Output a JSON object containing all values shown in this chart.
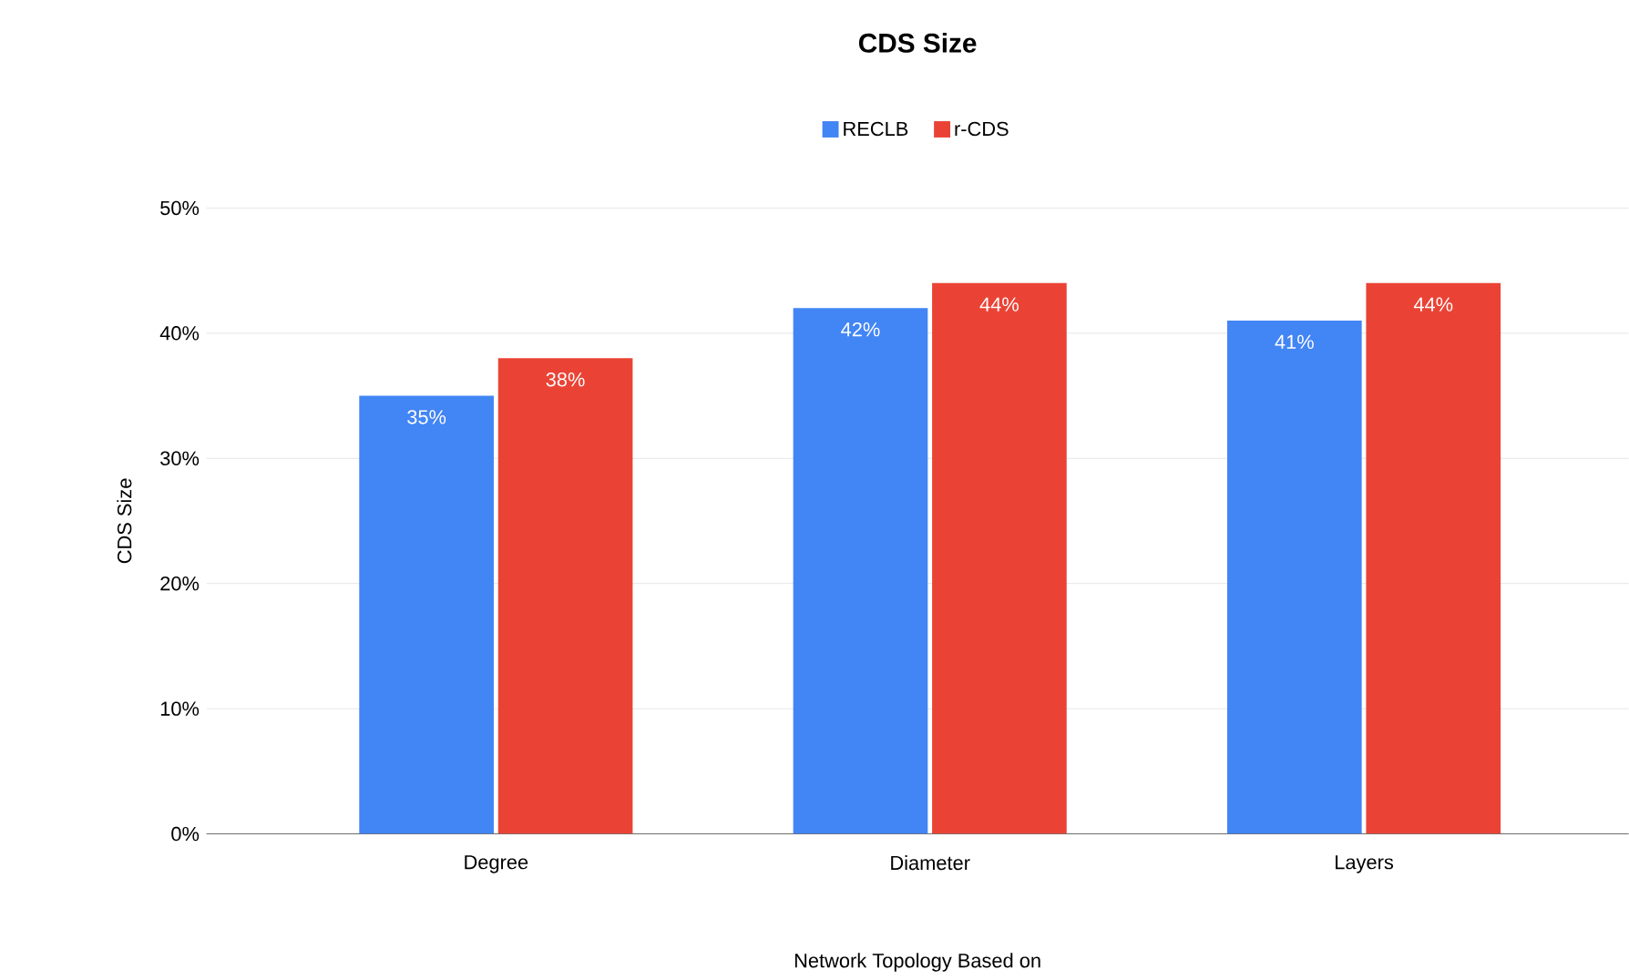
{
  "chart_data": {
    "type": "bar",
    "title": "CDS Size",
    "xlabel": "Network Topology Based on",
    "ylabel": "CDS Size",
    "categories": [
      "Degree",
      "Diameter",
      "Layers"
    ],
    "series": [
      {
        "name": "RECLB",
        "color": "#4285f4",
        "values": [
          35,
          42,
          41
        ],
        "value_labels": [
          "35%",
          "42%",
          "41%"
        ]
      },
      {
        "name": "r-CDS",
        "color": "#ea4335",
        "values": [
          38,
          44,
          44
        ],
        "value_labels": [
          "38%",
          "44%",
          "44%"
        ]
      }
    ],
    "ylim": [
      0,
      50
    ],
    "yticks": [
      {
        "value": 0,
        "label": "0%"
      },
      {
        "value": 10,
        "label": "10%"
      },
      {
        "value": 20,
        "label": "20%"
      },
      {
        "value": 30,
        "label": "30%"
      },
      {
        "value": 40,
        "label": "40%"
      },
      {
        "value": 50,
        "label": "50%"
      }
    ],
    "grid": "y",
    "legend": "top"
  }
}
